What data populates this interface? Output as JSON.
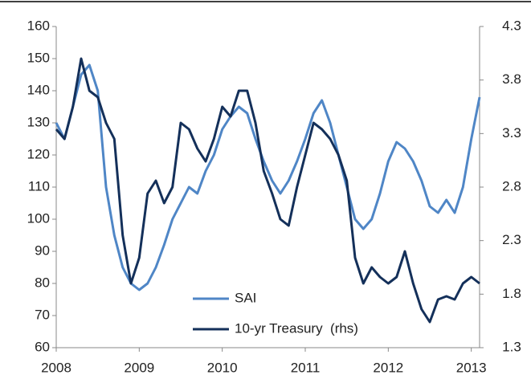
{
  "chart_data": {
    "type": "line",
    "x": [
      2008.0,
      2008.1,
      2008.2,
      2008.3,
      2008.4,
      2008.5,
      2008.6,
      2008.7,
      2008.8,
      2008.9,
      2009.0,
      2009.1,
      2009.2,
      2009.3,
      2009.4,
      2009.5,
      2009.6,
      2009.7,
      2009.8,
      2009.9,
      2010.0,
      2010.1,
      2010.2,
      2010.3,
      2010.4,
      2010.5,
      2010.6,
      2010.7,
      2010.8,
      2010.9,
      2011.0,
      2011.1,
      2011.2,
      2011.3,
      2011.4,
      2011.5,
      2011.6,
      2011.7,
      2011.8,
      2011.9,
      2012.0,
      2012.1,
      2012.2,
      2012.3,
      2012.4,
      2012.5,
      2012.6,
      2012.7,
      2012.8,
      2012.9,
      2013.0,
      2013.1
    ],
    "series": [
      {
        "name": "SAI",
        "color": "#4f86c6",
        "values": [
          130,
          125,
          135,
          145,
          148,
          140,
          110,
          95,
          85,
          80,
          78,
          80,
          85,
          92,
          100,
          105,
          110,
          108,
          115,
          120,
          128,
          132,
          135,
          133,
          125,
          118,
          112,
          108,
          112,
          118,
          125,
          133,
          137,
          130,
          120,
          110,
          100,
          97,
          100,
          108,
          118,
          124,
          122,
          118,
          112,
          104,
          102,
          106,
          102,
          110,
          125,
          138
        ]
      },
      {
        "name": "10-yr Treasury  (rhs)",
        "color": "#14305a",
        "axis": "y2",
        "values": [
          3.34,
          3.25,
          3.55,
          4.0,
          3.7,
          3.64,
          3.4,
          3.25,
          2.35,
          1.9,
          2.14,
          2.74,
          2.86,
          2.65,
          2.8,
          3.4,
          3.34,
          3.16,
          3.04,
          3.25,
          3.55,
          3.46,
          3.7,
          3.7,
          3.4,
          2.95,
          2.74,
          2.5,
          2.44,
          2.8,
          3.1,
          3.4,
          3.34,
          3.25,
          3.1,
          2.86,
          2.14,
          1.9,
          2.05,
          1.96,
          1.9,
          1.96,
          2.2,
          1.9,
          1.66,
          1.54,
          1.75,
          1.78,
          1.75,
          1.9,
          1.96,
          1.9
        ]
      }
    ],
    "xlim": [
      2008,
      2013.1
    ],
    "xticks": [
      2008,
      2009,
      2010,
      2011,
      2012,
      2013
    ],
    "ylim": [
      60,
      160
    ],
    "yticks": [
      60,
      70,
      80,
      90,
      100,
      110,
      120,
      130,
      140,
      150,
      160
    ],
    "y2lim": [
      1.3,
      4.3
    ],
    "y2ticks": [
      1.3,
      1.8,
      2.3,
      2.8,
      3.3,
      3.8,
      4.3
    ],
    "grid": false
  }
}
